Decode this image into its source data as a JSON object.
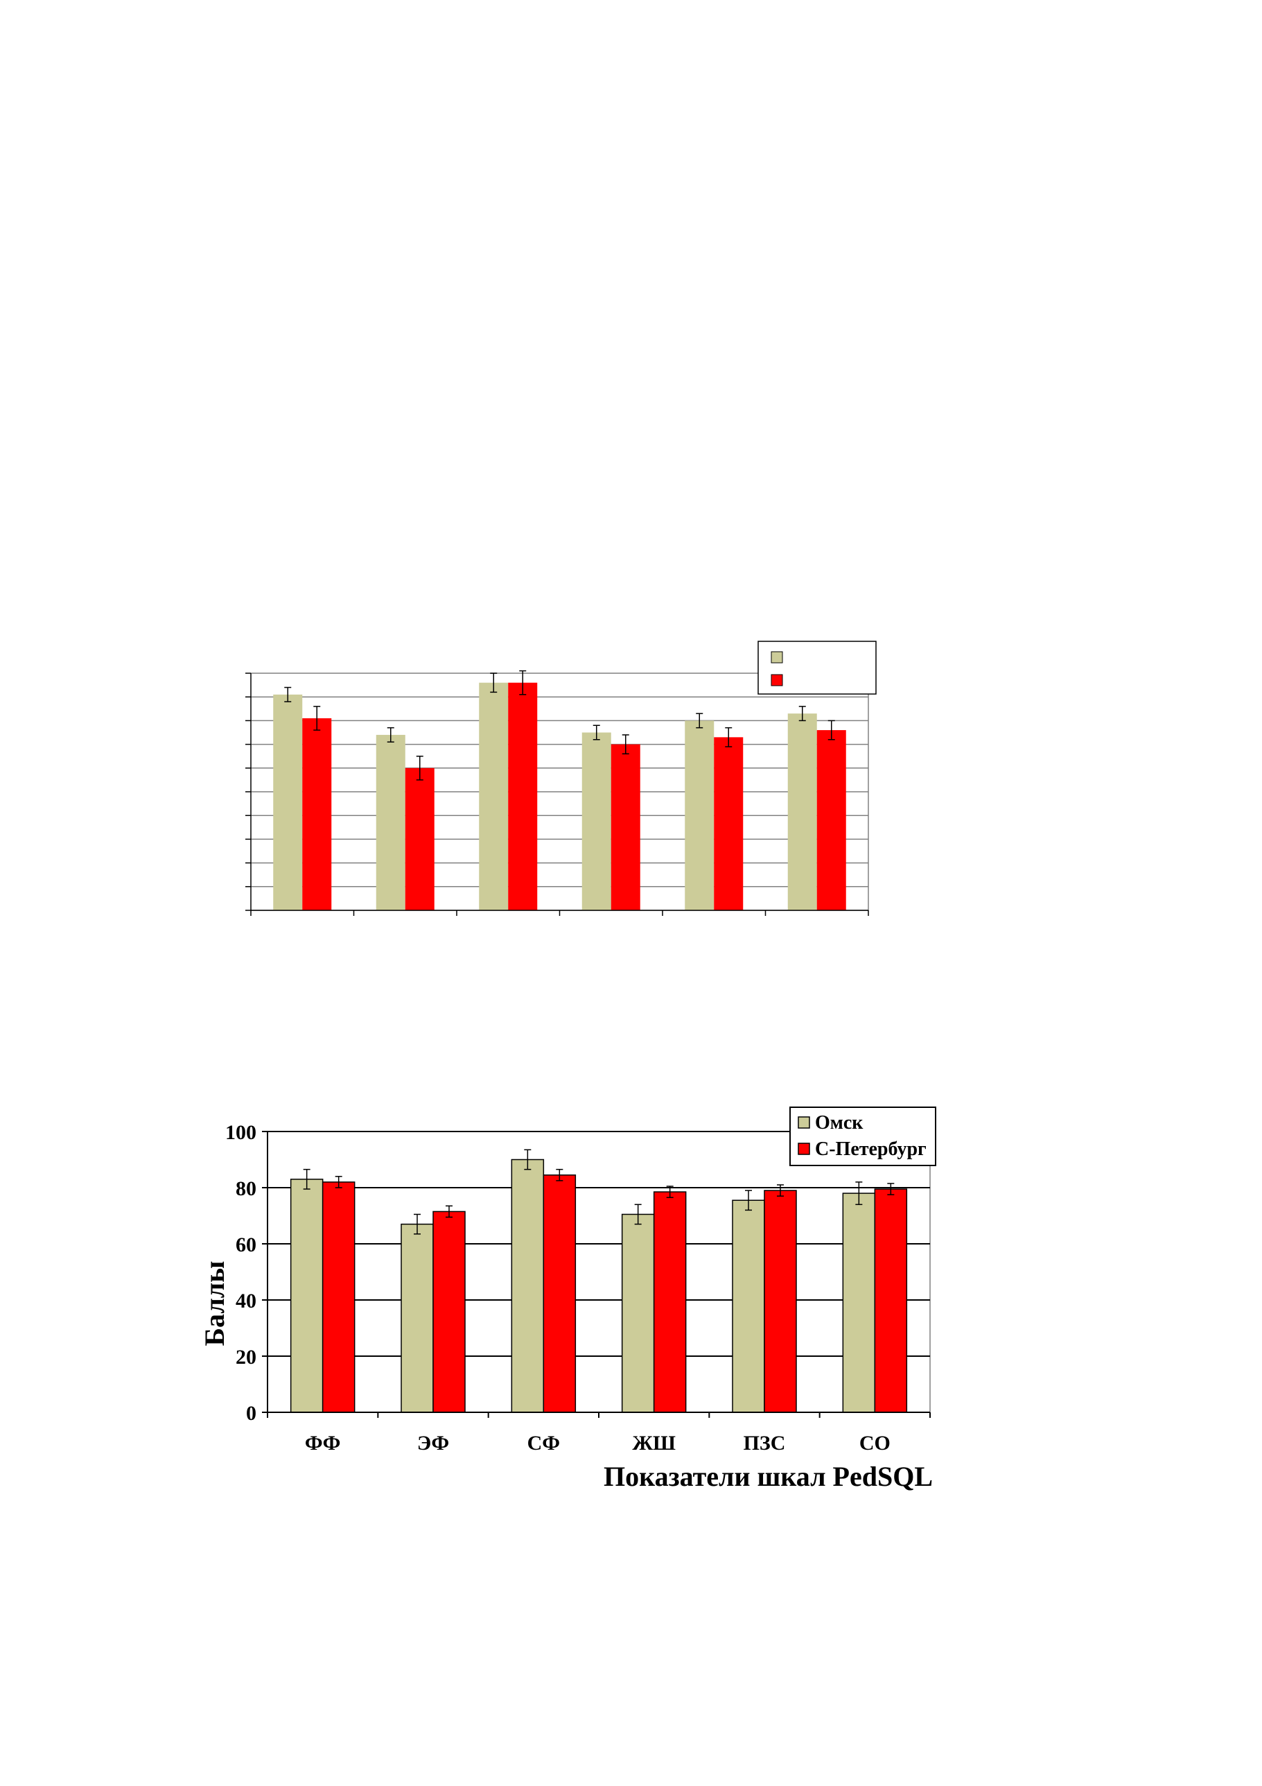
{
  "colors": {
    "omsk": "#CCCC99",
    "spb": "#FF0000",
    "grid": "#000000",
    "frame": "#808080"
  },
  "chart_data": [
    {
      "type": "bar",
      "categories": [
        "",
        "",
        "",
        "",
        "",
        ""
      ],
      "series": [
        {
          "values": [
            91,
            74,
            96,
            75,
            80,
            83
          ],
          "errors": [
            3,
            3,
            4,
            3,
            3,
            3
          ]
        },
        {
          "values": [
            81,
            60,
            96,
            70,
            73,
            76
          ],
          "errors": [
            5,
            5,
            5,
            4,
            4,
            4
          ]
        }
      ],
      "ylim": [
        0,
        100
      ],
      "grid": true,
      "legend": "top-right",
      "legend_labels": [
        "",
        ""
      ],
      "tick_labels": [
        "",
        "",
        "",
        "",
        "",
        "",
        "",
        "",
        "",
        "",
        ""
      ],
      "xlabel": "",
      "ylabel": ""
    },
    {
      "type": "bar",
      "categories": [
        "ФФ",
        "ЭФ",
        "СФ",
        "ЖШ",
        "ПЗС",
        "СО"
      ],
      "series": [
        {
          "name": "Омск",
          "values": [
            83,
            67,
            90,
            70.5,
            75.5,
            78
          ],
          "errors": [
            3.5,
            3.5,
            3.5,
            3.5,
            3.5,
            4
          ]
        },
        {
          "name": "С-Петербург",
          "values": [
            82,
            71.5,
            84.5,
            78.5,
            79,
            79.5
          ],
          "errors": [
            2,
            2,
            2,
            2,
            2,
            2
          ]
        }
      ],
      "ylim": [
        0,
        100
      ],
      "y_ticks": [
        "0",
        "20",
        "40",
        "60",
        "80",
        "100"
      ],
      "grid": true,
      "legend": "top-right",
      "xlabel": "Показатели шкал PedSQL",
      "ylabel": "Баллы"
    }
  ]
}
